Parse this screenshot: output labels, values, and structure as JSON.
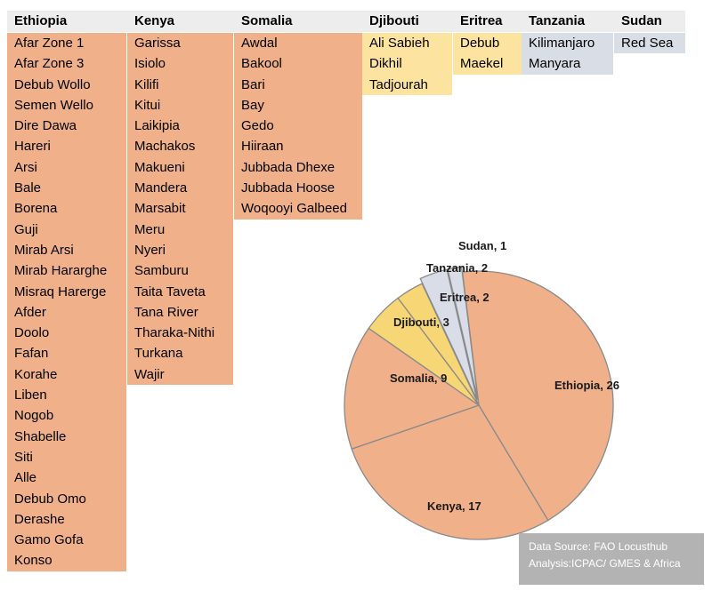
{
  "table": {
    "columns": [
      {
        "header": "Ethiopia",
        "items": [
          "Afar Zone 1",
          "Afar Zone 3",
          "Debub Wollo",
          "Semen Wello",
          "Dire Dawa",
          "Hareri",
          "Arsi",
          "Bale",
          "Borena",
          "Guji",
          "Mirab Arsi",
          "Mirab Hararghe",
          "Misraq Harerge",
          "Afder",
          "Doolo",
          "Fafan",
          "Korahe",
          "Liben",
          "Nogob",
          "Shabelle",
          "Siti",
          "Alle",
          "Debub Omo",
          "Derashe",
          "Gamo Gofa",
          "Konso"
        ]
      },
      {
        "header": "Kenya",
        "items": [
          "Garissa",
          "Isiolo",
          "Kilifi",
          "Kitui",
          "Laikipia",
          "Machakos",
          "Makueni",
          "Mandera",
          "Marsabit",
          "Meru",
          "Nyeri",
          "Samburu",
          "Taita Taveta",
          "Tana River",
          "Tharaka-Nithi",
          "Turkana",
          "Wajir"
        ]
      },
      {
        "header": "Somalia",
        "items": [
          "Awdal",
          "Bakool",
          "Bari",
          "Bay",
          "Gedo",
          "Hiiraan",
          "Jubbada Dhexe",
          "Jubbada Hoose",
          "Woqooyi Galbeed"
        ]
      },
      {
        "header": "Djibouti",
        "items": [
          "Ali Sabieh",
          "Dikhil",
          "Tadjourah"
        ]
      },
      {
        "header": "Eritrea",
        "items": [
          "Debub",
          "Maekel"
        ]
      },
      {
        "header": "Tanzania",
        "items": [
          "Kilimanjaro",
          "Manyara"
        ]
      },
      {
        "header": "Sudan",
        "items": [
          "Red Sea"
        ]
      }
    ]
  },
  "chart_data": {
    "type": "pie",
    "slices": [
      {
        "label": "Ethiopia, 26",
        "value": 26,
        "color": "#efb08a"
      },
      {
        "label": "Kenya, 17",
        "value": 17,
        "color": "#efb08a"
      },
      {
        "label": "Somalia, 9",
        "value": 9,
        "color": "#efb08a"
      },
      {
        "label": "Djibouti, 3",
        "value": 3,
        "color": "#f6d675"
      },
      {
        "label": "Eritrea, 2",
        "value": 2,
        "color": "#f6d675"
      },
      {
        "label": "Tanzania, 2",
        "value": 2,
        "color": "#d8dde8"
      },
      {
        "label": "Sudan, 1",
        "value": 1,
        "color": "#d8dde8"
      }
    ]
  },
  "source": {
    "line1": "Data Source: FAO Locusthub",
    "line2": "Analysis:ICPAC/ GMES & Africa"
  }
}
